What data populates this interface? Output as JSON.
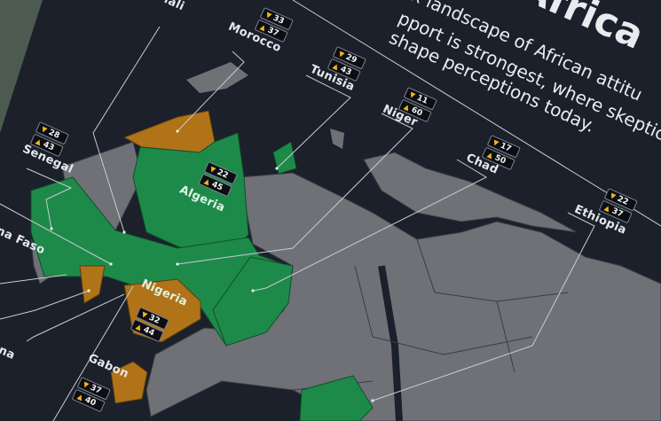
{
  "header": {
    "title": "Africa",
    "subtitle_lines": [
      "x landscape of African attitu",
      "pport is strongest, where skepticism",
      "shape perceptions today."
    ]
  },
  "legend_icons": {
    "top": "thumbs-down-icon",
    "bottom": "thumbs-up-icon"
  },
  "colors": {
    "background": "#1b202b",
    "support": "#1e8a4a",
    "skeptic": "#b07318",
    "no_data": "#6f7177",
    "badge_icon": "#f2b51c"
  },
  "countries": [
    {
      "name": "Mali"
    },
    {
      "name": "Morocco",
      "down": "33",
      "up": "37"
    },
    {
      "name": "Tunisia",
      "down": "29",
      "up": "43"
    },
    {
      "name": "Niger",
      "down": "11",
      "up": "60"
    },
    {
      "name": "Chad",
      "down": "17",
      "up": "50"
    },
    {
      "name": "Ethiopia",
      "down": "22",
      "up": "37"
    },
    {
      "name": "Senegal",
      "down": "28",
      "up": "43"
    },
    {
      "name": "Algeria",
      "down": "22",
      "up": "45"
    },
    {
      "name": "Burkina Faso"
    },
    {
      "name": "Ghana"
    },
    {
      "name": "Nigeria",
      "down": "32",
      "up": "44"
    },
    {
      "name": "Gabon",
      "down": "37",
      "up": "40"
    }
  ]
}
